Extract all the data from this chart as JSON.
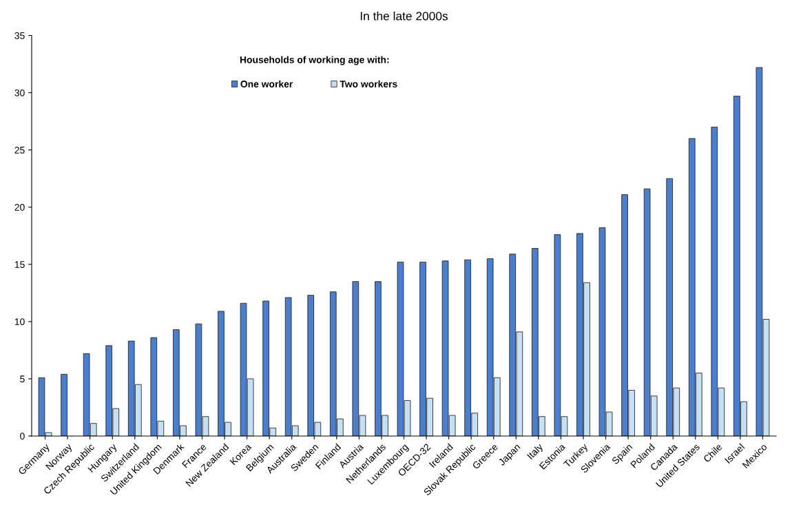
{
  "chart_data": {
    "type": "bar",
    "title": "In the late 2000s",
    "legend_title": "Households of working age with:",
    "legend": "top",
    "categories": [
      "Germany",
      "Norway",
      "Czech Republic",
      "Hungary",
      "Switzerland",
      "United Kingdom",
      "Denmark",
      "France",
      "New Zealand",
      "Korea",
      "Belgium",
      "Australia",
      "Sweden",
      "Finland",
      "Austria",
      "Netherlands",
      "Luxembourg",
      "OECD-32",
      "Ireland",
      "Slovak Republic",
      "Greece",
      "Japan",
      "Italy",
      "Estonia",
      "Turkey",
      "Slovenia",
      "Spain",
      "Poland",
      "Canada",
      "United States",
      "Chile",
      "Israel",
      "Mexico"
    ],
    "series": [
      {
        "name": "One worker",
        "color": "#4a7fcf",
        "values": [
          5.1,
          5.4,
          7.2,
          7.9,
          8.3,
          8.6,
          9.3,
          9.8,
          10.9,
          11.6,
          11.8,
          12.1,
          12.3,
          12.6,
          13.5,
          13.5,
          15.2,
          15.2,
          15.3,
          15.4,
          15.5,
          15.9,
          16.4,
          17.6,
          17.7,
          18.2,
          21.1,
          21.6,
          22.5,
          26.0,
          27.0,
          29.7,
          32.2
        ]
      },
      {
        "name": "Two workers",
        "color": "#c5dff3",
        "values": [
          0.3,
          0.0,
          1.1,
          2.4,
          4.5,
          1.3,
          0.9,
          1.7,
          1.2,
          5.0,
          0.7,
          0.9,
          1.2,
          1.5,
          1.8,
          1.8,
          3.1,
          3.3,
          1.8,
          2.0,
          5.1,
          9.1,
          1.7,
          1.7,
          13.4,
          2.1,
          4.0,
          3.5,
          4.2,
          5.5,
          4.2,
          3.0,
          10.2
        ]
      }
    ],
    "ylim": [
      0,
      35
    ],
    "yticks": [
      0,
      5,
      10,
      15,
      20,
      25,
      30,
      35
    ],
    "grid": false
  }
}
